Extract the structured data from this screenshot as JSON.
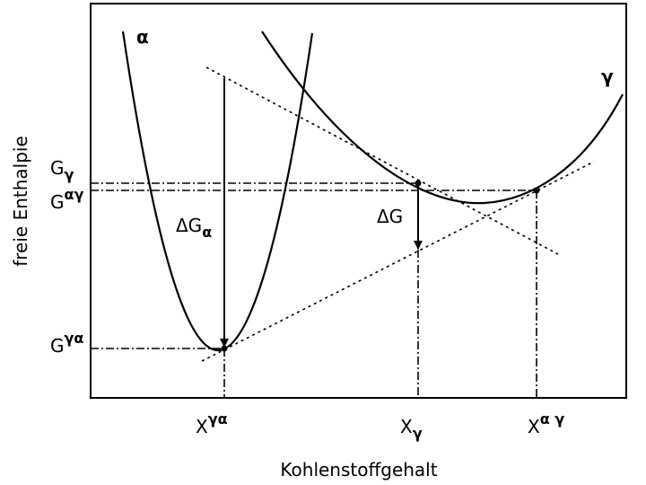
{
  "axes": {
    "y_label": "freie Enthalpie",
    "x_label": "Kohlenstoffgehalt"
  },
  "curves": {
    "alpha": "α",
    "gamma": "γ"
  },
  "y_labels": [
    {
      "base": "G",
      "script": "γ"
    },
    {
      "base": "G",
      "script": "αγ"
    },
    {
      "base": "G",
      "script": "γα"
    }
  ],
  "x_labels": [
    {
      "base": "X",
      "script": "γα"
    },
    {
      "base": "X",
      "script": "γ"
    },
    {
      "base": "X",
      "script": "α γ"
    }
  ],
  "arrows": [
    {
      "base": "ΔG",
      "script": "α"
    },
    {
      "base": "ΔG"
    }
  ]
}
